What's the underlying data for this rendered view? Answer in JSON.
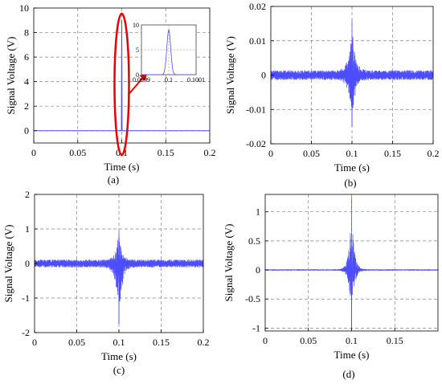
{
  "colors": {
    "signal": "#4d4dff",
    "grid": "#808080",
    "highlight": "#e60000",
    "axis": "#000000"
  },
  "chart_data": [
    {
      "id": "a",
      "type": "line",
      "caption": "(a)",
      "xlabel": "Time (s)",
      "ylabel": "Signal Voltage (V)",
      "xlim": [
        0,
        0.2
      ],
      "ylim": [
        -1,
        10
      ],
      "xticks": [
        0,
        0.05,
        0.1,
        0.15,
        0.2
      ],
      "xtick_labels": [
        "0",
        "0.05",
        "0.1",
        "0.15",
        "0.2"
      ],
      "yticks": [
        0,
        2,
        4,
        6,
        8,
        10
      ],
      "ytick_labels": [
        "0",
        "2",
        "4",
        "6",
        "8",
        "10"
      ],
      "grid": true,
      "signal": {
        "kind": "pulse",
        "baseline": 0,
        "center": 0.1,
        "peak": 9.0,
        "width": 1e-05
      },
      "highlight": "red ellipse around the pulse at t = 0.1 s with arrow to zoomed inset",
      "inset": {
        "xlim": [
          0.0999,
          0.1001
        ],
        "ylim": [
          0,
          10
        ],
        "xtick_labels": [
          "0.0999",
          "0.1",
          "0.1001"
        ],
        "ytick_labels": [
          "0",
          "5",
          "10"
        ],
        "peak": 9.0,
        "center": 0.1,
        "width": 1e-05
      }
    },
    {
      "id": "b",
      "type": "line",
      "caption": "(b)",
      "xlabel": "Time (s)",
      "ylabel": "Signal Voltage (V)",
      "xlim": [
        0,
        0.2
      ],
      "ylim": [
        -0.02,
        0.02
      ],
      "xticks": [
        0,
        0.05,
        0.1,
        0.15,
        0.2
      ],
      "xtick_labels": [
        "0",
        "0.05",
        "0.1",
        "0.15",
        "0.2"
      ],
      "yticks": [
        -0.02,
        -0.01,
        0,
        0.01,
        0.02
      ],
      "ytick_labels": [
        "-0.02",
        "-0.01",
        "0",
        "0.01",
        "0.02"
      ],
      "grid": true,
      "signal": {
        "kind": "oscillation",
        "noise_amplitude": 0.001,
        "burst_center": 0.1,
        "burst_peak_pos": 0.016,
        "burst_peak_neg": -0.015,
        "decay": 0.004
      }
    },
    {
      "id": "c",
      "type": "line",
      "caption": "(c)",
      "xlabel": "Time (s)",
      "ylabel": "Signal Voltage (V)",
      "xlim": [
        0,
        0.2
      ],
      "ylim": [
        -2,
        2
      ],
      "xticks": [
        0,
        0.05,
        0.1,
        0.15,
        0.2
      ],
      "xtick_labels": [
        "0",
        "0.05",
        "0.1",
        "0.15",
        "0.2"
      ],
      "yticks": [
        -2,
        -1,
        0,
        1,
        2
      ],
      "ytick_labels": [
        "-2",
        "-1",
        "0",
        "1",
        "2"
      ],
      "grid": true,
      "signal": {
        "kind": "oscillation",
        "noise_amplitude": 0.08,
        "burst_center": 0.1,
        "burst_peak_pos": 0.95,
        "burst_peak_neg": -1.75,
        "decay": 0.004
      }
    },
    {
      "id": "d",
      "type": "line",
      "caption": "(d)",
      "xlabel": "Time (s)",
      "ylabel": "Signal Voltage (V)",
      "xlim": [
        0,
        0.2
      ],
      "ylim": [
        -1.05,
        1.3
      ],
      "xticks": [
        0,
        0.05,
        0.1,
        0.15
      ],
      "xtick_labels": [
        "0",
        "0.05",
        "0.1",
        "0.15"
      ],
      "yticks": [
        -1,
        -0.5,
        0,
        0.5,
        1
      ],
      "ytick_labels": [
        "-1",
        "-0.5",
        "0",
        "0.5",
        "1"
      ],
      "grid": true,
      "signal": {
        "kind": "oscillation",
        "noise_amplitude": 0.008,
        "burst_center": 0.1,
        "burst_peak_pos": 1.25,
        "burst_peak_neg": -1.0,
        "decay": 0.003
      }
    }
  ]
}
